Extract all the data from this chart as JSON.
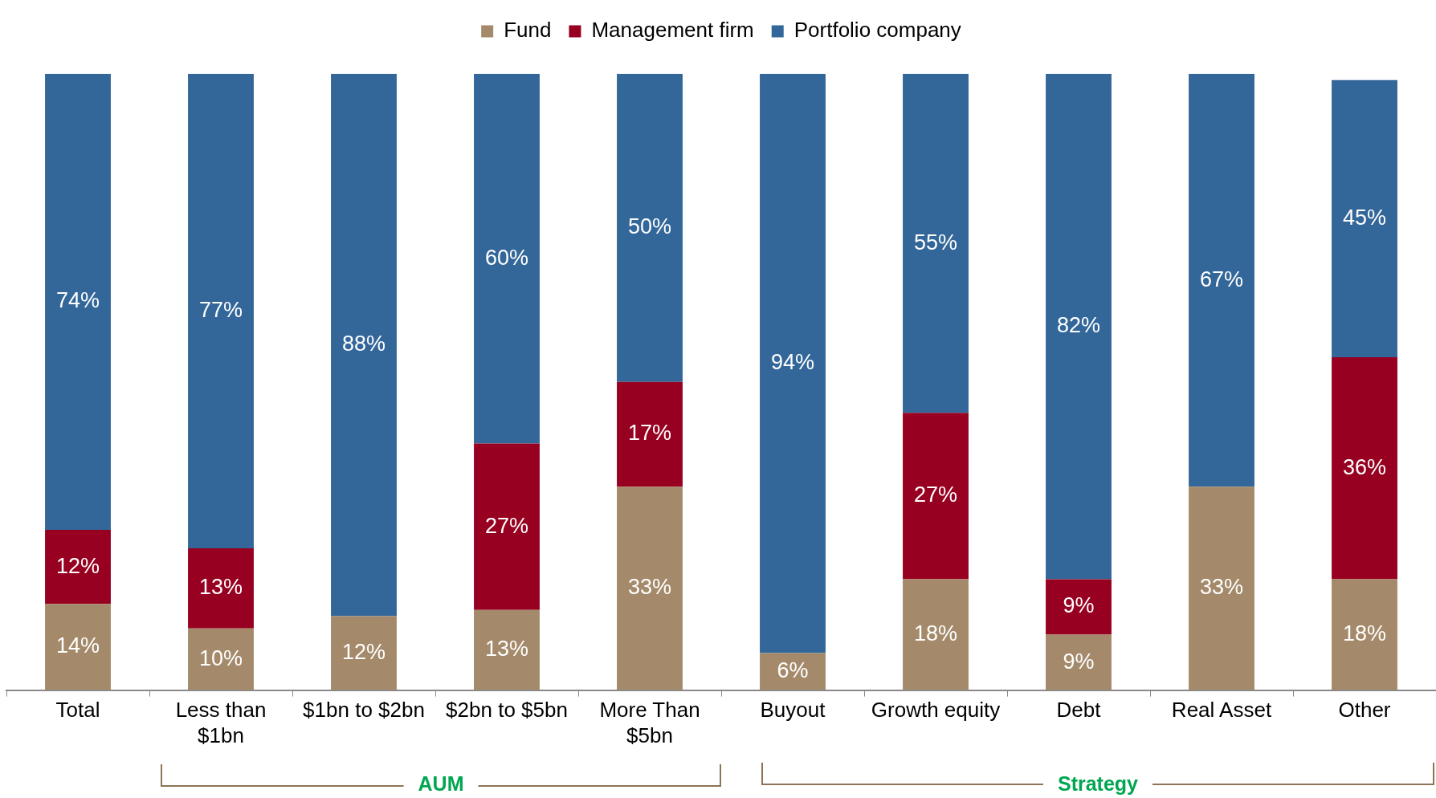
{
  "chart_data": {
    "type": "bar",
    "stacked": true,
    "legend": "top",
    "categories": [
      "Total",
      "Less than $1bn",
      "$1bn to $2bn",
      "$2bn to $5bn",
      "More Than $5bn",
      "Buyout",
      "Growth equity",
      "Debt",
      "Real Asset",
      "Other"
    ],
    "series": [
      {
        "name": "Fund",
        "color": "#a48a6a",
        "values": [
          14,
          10,
          12,
          13,
          33,
          6,
          18,
          9,
          33,
          18
        ],
        "value_labels": [
          "14%",
          "10%",
          "12%",
          "13%",
          "33%",
          "6%",
          "18%",
          "9%",
          "33%",
          "18%"
        ]
      },
      {
        "name": "Management firm",
        "color": "#970020",
        "values": [
          12,
          13,
          null,
          27,
          17,
          null,
          27,
          9,
          null,
          36
        ],
        "value_labels": [
          "12%",
          "13%",
          null,
          "27%",
          "17%",
          null,
          "27%",
          "9%",
          null,
          "36%"
        ]
      },
      {
        "name": "Portfolio company",
        "color": "#336699",
        "values": [
          74,
          77,
          88,
          60,
          50,
          94,
          55,
          82,
          67,
          45
        ],
        "value_labels": [
          "74%",
          "77%",
          "88%",
          "60%",
          "50%",
          "94%",
          "55%",
          "82%",
          "67%",
          "45%"
        ]
      }
    ],
    "annotations": [
      "AUM",
      "Strategy"
    ]
  }
}
